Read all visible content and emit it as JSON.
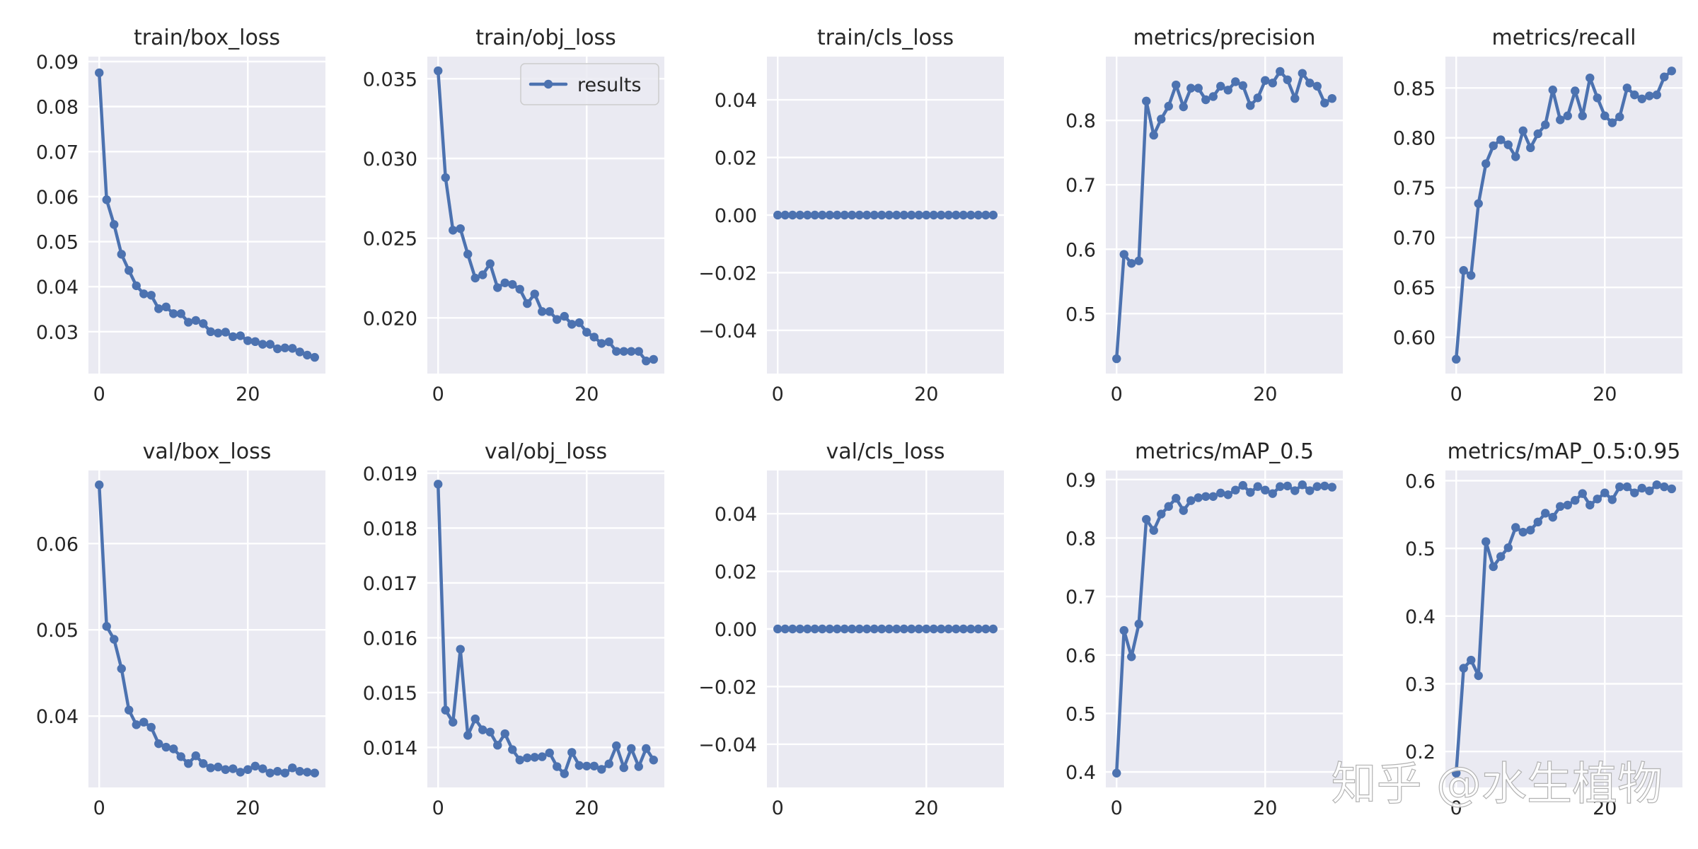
{
  "colors": {
    "series": "#4c72b0",
    "plot_bg": "#eaeaf2",
    "grid": "#ffffff",
    "text": "#262626"
  },
  "watermark": "知乎 @水生植物",
  "chart_data": [
    {
      "type": "line",
      "title": "train/box_loss",
      "series_name": "results",
      "x": [
        0,
        1,
        2,
        3,
        4,
        5,
        6,
        7,
        8,
        9,
        10,
        11,
        12,
        13,
        14,
        15,
        16,
        17,
        18,
        19,
        20,
        21,
        22,
        23,
        24,
        25,
        26,
        27,
        28,
        29
      ],
      "values": [
        0.0875,
        0.0593,
        0.0538,
        0.0472,
        0.0436,
        0.0402,
        0.0384,
        0.0381,
        0.0351,
        0.0355,
        0.034,
        0.034,
        0.0321,
        0.0325,
        0.0318,
        0.03,
        0.0297,
        0.0299,
        0.0289,
        0.0291,
        0.028,
        0.0278,
        0.0272,
        0.0272,
        0.0262,
        0.0264,
        0.0263,
        0.0255,
        0.0248,
        0.0243
      ],
      "xlim": [
        -1.45,
        30.45
      ],
      "ylim": [
        0.0207,
        0.0911
      ],
      "xticks": [
        0,
        20
      ],
      "xtick_labels": [
        "0",
        "20"
      ],
      "yticks": [
        0.03,
        0.04,
        0.05,
        0.06,
        0.07,
        0.08,
        0.09
      ],
      "ytick_labels": [
        "0.03",
        "0.04",
        "0.05",
        "0.06",
        "0.07",
        "0.08",
        "0.09"
      ]
    },
    {
      "type": "line",
      "title": "train/obj_loss",
      "series_name": "results",
      "legend": {
        "label": "results",
        "location": "upper right"
      },
      "x": [
        0,
        1,
        2,
        3,
        4,
        5,
        6,
        7,
        8,
        9,
        10,
        11,
        12,
        13,
        14,
        15,
        16,
        17,
        18,
        19,
        20,
        21,
        22,
        23,
        24,
        25,
        26,
        27,
        28,
        29
      ],
      "values": [
        0.0355,
        0.0288,
        0.0255,
        0.0256,
        0.024,
        0.0225,
        0.0227,
        0.0234,
        0.0219,
        0.0222,
        0.0221,
        0.0218,
        0.0209,
        0.0215,
        0.0204,
        0.0204,
        0.0199,
        0.0201,
        0.0196,
        0.0197,
        0.0191,
        0.0188,
        0.0184,
        0.0185,
        0.0179,
        0.0179,
        0.0179,
        0.0179,
        0.0173,
        0.0174
      ],
      "xlim": [
        -1.45,
        30.45
      ],
      "ylim": [
        0.01651,
        0.03639
      ],
      "xticks": [
        0,
        20
      ],
      "xtick_labels": [
        "0",
        "20"
      ],
      "yticks": [
        0.02,
        0.025,
        0.03,
        0.035
      ],
      "ytick_labels": [
        "0.020",
        "0.025",
        "0.030",
        "0.035"
      ]
    },
    {
      "type": "line",
      "title": "train/cls_loss",
      "series_name": "results",
      "x": [
        0,
        1,
        2,
        3,
        4,
        5,
        6,
        7,
        8,
        9,
        10,
        11,
        12,
        13,
        14,
        15,
        16,
        17,
        18,
        19,
        20,
        21,
        22,
        23,
        24,
        25,
        26,
        27,
        28,
        29
      ],
      "values": [
        0,
        0,
        0,
        0,
        0,
        0,
        0,
        0,
        0,
        0,
        0,
        0,
        0,
        0,
        0,
        0,
        0,
        0,
        0,
        0,
        0,
        0,
        0,
        0,
        0,
        0,
        0,
        0,
        0,
        0
      ],
      "xlim": [
        -1.45,
        30.45
      ],
      "ylim": [
        -0.055,
        0.055
      ],
      "xticks": [
        0,
        20
      ],
      "xtick_labels": [
        "0",
        "20"
      ],
      "yticks": [
        -0.04,
        -0.02,
        0,
        0.02,
        0.04
      ],
      "ytick_labels": [
        "−0.04",
        "−0.02",
        "0.00",
        "0.02",
        "0.04"
      ]
    },
    {
      "type": "line",
      "title": "metrics/precision",
      "series_name": "results",
      "x": [
        0,
        1,
        2,
        3,
        4,
        5,
        6,
        7,
        8,
        9,
        10,
        11,
        12,
        13,
        14,
        15,
        16,
        17,
        18,
        19,
        20,
        21,
        22,
        23,
        24,
        25,
        26,
        27,
        28,
        29
      ],
      "values": [
        0.43,
        0.592,
        0.578,
        0.582,
        0.83,
        0.777,
        0.802,
        0.822,
        0.855,
        0.821,
        0.85,
        0.85,
        0.832,
        0.837,
        0.853,
        0.847,
        0.86,
        0.854,
        0.823,
        0.835,
        0.862,
        0.858,
        0.876,
        0.863,
        0.834,
        0.873,
        0.858,
        0.853,
        0.827,
        0.834
      ],
      "xlim": [
        -1.45,
        30.45
      ],
      "ylim": [
        0.407,
        0.899
      ],
      "xticks": [
        0,
        20
      ],
      "xtick_labels": [
        "0",
        "20"
      ],
      "yticks": [
        0.5,
        0.6,
        0.7,
        0.8
      ],
      "ytick_labels": [
        "0.5",
        "0.6",
        "0.7",
        "0.8"
      ]
    },
    {
      "type": "line",
      "title": "metrics/recall",
      "series_name": "results",
      "x": [
        0,
        1,
        2,
        3,
        4,
        5,
        6,
        7,
        8,
        9,
        10,
        11,
        12,
        13,
        14,
        15,
        16,
        17,
        18,
        19,
        20,
        21,
        22,
        23,
        24,
        25,
        26,
        27,
        28,
        29
      ],
      "values": [
        0.578,
        0.667,
        0.662,
        0.734,
        0.774,
        0.792,
        0.798,
        0.793,
        0.781,
        0.807,
        0.79,
        0.804,
        0.813,
        0.848,
        0.818,
        0.822,
        0.847,
        0.822,
        0.86,
        0.84,
        0.822,
        0.815,
        0.821,
        0.85,
        0.843,
        0.839,
        0.842,
        0.843,
        0.861,
        0.867
      ],
      "xlim": [
        -1.45,
        30.45
      ],
      "ylim": [
        0.5636,
        0.8814
      ],
      "xticks": [
        0,
        20
      ],
      "xtick_labels": [
        "0",
        "20"
      ],
      "yticks": [
        0.6,
        0.65,
        0.7,
        0.75,
        0.8,
        0.85
      ],
      "ytick_labels": [
        "0.60",
        "0.65",
        "0.70",
        "0.75",
        "0.80",
        "0.85"
      ]
    },
    {
      "type": "line",
      "title": "val/box_loss",
      "series_name": "results",
      "x": [
        0,
        1,
        2,
        3,
        4,
        5,
        6,
        7,
        8,
        9,
        10,
        11,
        12,
        13,
        14,
        15,
        16,
        17,
        18,
        19,
        20,
        21,
        22,
        23,
        24,
        25,
        26,
        27,
        28,
        29
      ],
      "values": [
        0.0668,
        0.0504,
        0.0489,
        0.0455,
        0.0407,
        0.039,
        0.0393,
        0.0387,
        0.0368,
        0.0364,
        0.0362,
        0.0353,
        0.0345,
        0.0354,
        0.0345,
        0.034,
        0.0341,
        0.0338,
        0.0339,
        0.0335,
        0.0338,
        0.0342,
        0.0339,
        0.0334,
        0.0336,
        0.0334,
        0.034,
        0.0336,
        0.0335,
        0.0334
      ],
      "xlim": [
        -1.45,
        30.45
      ],
      "ylim": [
        0.03173,
        0.06847
      ],
      "xticks": [
        0,
        20
      ],
      "xtick_labels": [
        "0",
        "20"
      ],
      "yticks": [
        0.04,
        0.05,
        0.06
      ],
      "ytick_labels": [
        "0.04",
        "0.05",
        "0.06"
      ]
    },
    {
      "type": "line",
      "title": "val/obj_loss",
      "series_name": "results",
      "x": [
        0,
        1,
        2,
        3,
        4,
        5,
        6,
        7,
        8,
        9,
        10,
        11,
        12,
        13,
        14,
        15,
        16,
        17,
        18,
        19,
        20,
        21,
        22,
        23,
        24,
        25,
        26,
        27,
        28,
        29
      ],
      "values": [
        0.0188,
        0.01468,
        0.01446,
        0.01579,
        0.01422,
        0.01452,
        0.01432,
        0.01428,
        0.01404,
        0.01425,
        0.01396,
        0.01377,
        0.01381,
        0.01382,
        0.01383,
        0.0139,
        0.01365,
        0.01352,
        0.01391,
        0.01367,
        0.01366,
        0.01366,
        0.0136,
        0.0137,
        0.01403,
        0.01363,
        0.01398,
        0.01365,
        0.01398,
        0.01377
      ],
      "xlim": [
        -1.45,
        30.45
      ],
      "ylim": [
        0.01327,
        0.01905
      ],
      "xticks": [
        0,
        20
      ],
      "xtick_labels": [
        "0",
        "20"
      ],
      "yticks": [
        0.014,
        0.015,
        0.016,
        0.017,
        0.018,
        0.019
      ],
      "ytick_labels": [
        "0.014",
        "0.015",
        "0.016",
        "0.017",
        "0.018",
        "0.019"
      ]
    },
    {
      "type": "line",
      "title": "val/cls_loss",
      "series_name": "results",
      "x": [
        0,
        1,
        2,
        3,
        4,
        5,
        6,
        7,
        8,
        9,
        10,
        11,
        12,
        13,
        14,
        15,
        16,
        17,
        18,
        19,
        20,
        21,
        22,
        23,
        24,
        25,
        26,
        27,
        28,
        29
      ],
      "values": [
        0,
        0,
        0,
        0,
        0,
        0,
        0,
        0,
        0,
        0,
        0,
        0,
        0,
        0,
        0,
        0,
        0,
        0,
        0,
        0,
        0,
        0,
        0,
        0,
        0,
        0,
        0,
        0,
        0,
        0
      ],
      "xlim": [
        -1.45,
        30.45
      ],
      "ylim": [
        -0.055,
        0.055
      ],
      "xticks": [
        0,
        20
      ],
      "xtick_labels": [
        "0",
        "20"
      ],
      "yticks": [
        -0.04,
        -0.02,
        0,
        0.02,
        0.04
      ],
      "ytick_labels": [
        "−0.04",
        "−0.02",
        "0.00",
        "0.02",
        "0.04"
      ]
    },
    {
      "type": "line",
      "title": "metrics/mAP_0.5",
      "series_name": "results",
      "x": [
        0,
        1,
        2,
        3,
        4,
        5,
        6,
        7,
        8,
        9,
        10,
        11,
        12,
        13,
        14,
        15,
        16,
        17,
        18,
        19,
        20,
        21,
        22,
        23,
        24,
        25,
        26,
        27,
        28,
        29
      ],
      "values": [
        0.398,
        0.642,
        0.597,
        0.653,
        0.832,
        0.813,
        0.841,
        0.854,
        0.868,
        0.847,
        0.864,
        0.869,
        0.871,
        0.871,
        0.877,
        0.874,
        0.882,
        0.89,
        0.878,
        0.888,
        0.882,
        0.876,
        0.888,
        0.889,
        0.881,
        0.891,
        0.881,
        0.888,
        0.889,
        0.887
      ],
      "xlim": [
        -1.45,
        30.45
      ],
      "ylim": [
        0.3735,
        0.9155
      ],
      "xticks": [
        0,
        20
      ],
      "xtick_labels": [
        "0",
        "20"
      ],
      "yticks": [
        0.4,
        0.5,
        0.6,
        0.7,
        0.8,
        0.9
      ],
      "ytick_labels": [
        "0.4",
        "0.5",
        "0.6",
        "0.7",
        "0.8",
        "0.9"
      ]
    },
    {
      "type": "line",
      "title": "metrics/mAP_0.5:0.95",
      "series_name": "results",
      "x": [
        0,
        1,
        2,
        3,
        4,
        5,
        6,
        7,
        8,
        9,
        10,
        11,
        12,
        13,
        14,
        15,
        16,
        17,
        18,
        19,
        20,
        21,
        22,
        23,
        24,
        25,
        26,
        27,
        28,
        29
      ],
      "values": [
        0.168,
        0.323,
        0.335,
        0.312,
        0.51,
        0.473,
        0.488,
        0.501,
        0.531,
        0.524,
        0.527,
        0.539,
        0.552,
        0.546,
        0.562,
        0.564,
        0.571,
        0.581,
        0.564,
        0.573,
        0.582,
        0.572,
        0.591,
        0.591,
        0.582,
        0.589,
        0.585,
        0.594,
        0.591,
        0.588
      ],
      "xlim": [
        -1.45,
        30.45
      ],
      "ylim": [
        0.1469,
        0.6151
      ],
      "xticks": [
        0,
        20
      ],
      "xtick_labels": [
        "0",
        "20"
      ],
      "yticks": [
        0.2,
        0.3,
        0.4,
        0.5,
        0.6
      ],
      "ytick_labels": [
        "0.2",
        "0.3",
        "0.4",
        "0.5",
        "0.6"
      ]
    }
  ]
}
